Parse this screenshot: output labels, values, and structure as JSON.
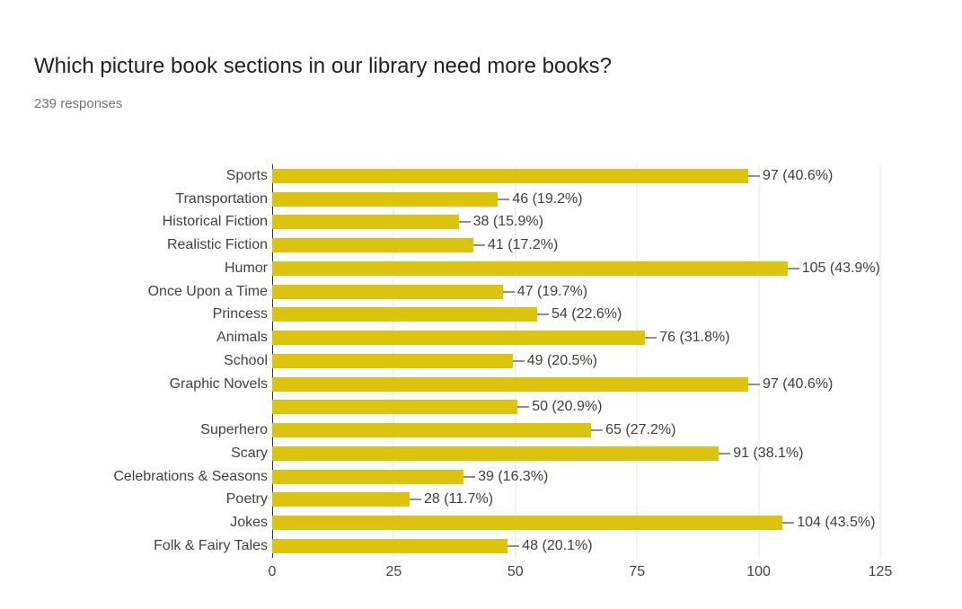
{
  "header": {
    "title": "Which picture book sections in our library need more books?",
    "responses": "239 responses"
  },
  "chart_data": {
    "type": "bar",
    "orientation": "horizontal",
    "title": "Which picture book sections in our library need more books?",
    "subtitle": "239 responses",
    "total_responses": 239,
    "categories": [
      "Sports",
      "Transportation",
      "Historical Fiction",
      "Realistic Fiction",
      "Humor",
      "Once Upon a Time",
      "Princess",
      "Animals",
      "School",
      "Graphic Novels",
      "",
      "Superhero",
      "Scary",
      "Celebrations & Seasons",
      "Poetry",
      "Jokes",
      "Folk & Fairy Tales"
    ],
    "values": [
      97,
      46,
      38,
      41,
      105,
      47,
      54,
      76,
      49,
      97,
      50,
      65,
      91,
      39,
      28,
      104,
      48
    ],
    "value_labels": [
      "97 (40.6%)",
      "46 (19.2%)",
      "38 (15.9%)",
      "41 (17.2%)",
      "105 (43.9%)",
      "47 (19.7%)",
      "54 (22.6%)",
      "76 (31.8%)",
      "49 (20.5%)",
      "97 (40.6%)",
      "50 (20.9%)",
      "65 (27.2%)",
      "91 (38.1%)",
      "39 (16.3%)",
      "28 (11.7%)",
      "104 (43.5%)",
      "48 (20.1%)"
    ],
    "xlim": [
      0,
      125
    ],
    "x_ticks": [
      "0",
      "25",
      "50",
      "75",
      "100",
      "125"
    ],
    "grid": true,
    "legend": "none"
  },
  "colors": {
    "bar": "#dcc40e",
    "title_text": "#212124",
    "subtitle_text": "#757575",
    "label_text": "#424242",
    "gridline": "#e6e6e6",
    "axis_line": "#333333",
    "whisker": "#8f8f8f",
    "background": "#ffffff"
  }
}
